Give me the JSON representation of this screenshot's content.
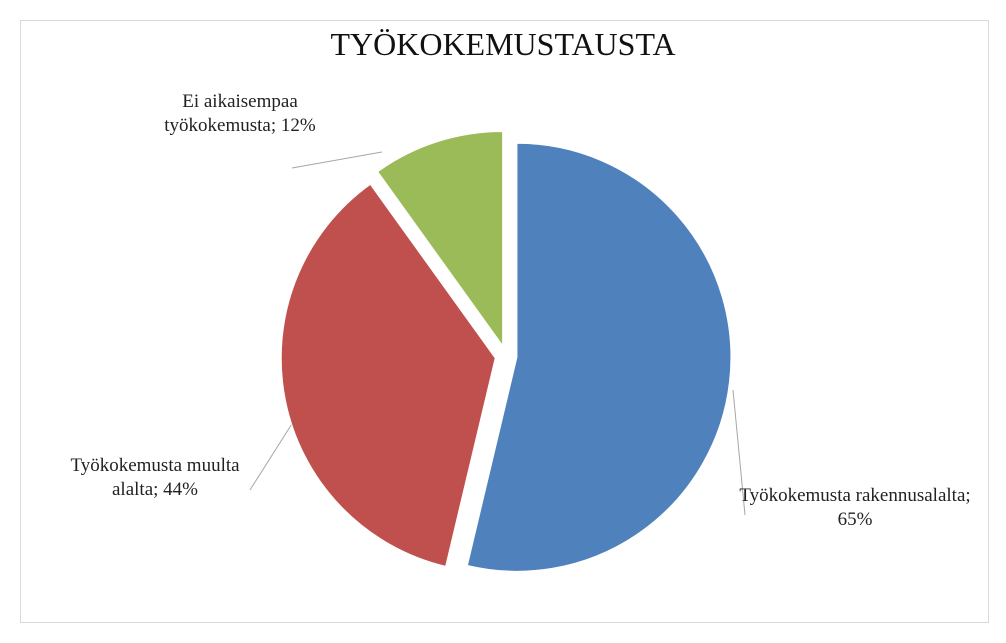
{
  "chart_data": {
    "type": "pie",
    "title": "TYÖKOKEMUSTAUSTA",
    "categories": [
      "Työkokemusta rakennusalalta",
      "Työkokemusta muulta alalta",
      "Ei aikaisempaa työkokemusta"
    ],
    "values": [
      65,
      44,
      12
    ],
    "value_labels": [
      "65%",
      "44%",
      "12%"
    ],
    "label_separator": "; ",
    "colors": [
      "#4f81bd",
      "#c0504d",
      "#9bbb59"
    ]
  }
}
